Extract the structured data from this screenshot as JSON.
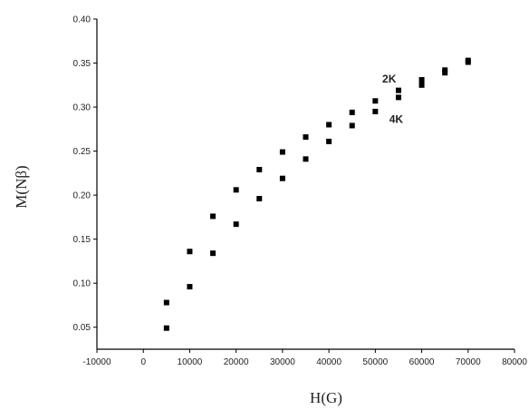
{
  "chart_data": {
    "type": "scatter",
    "title": "",
    "xlabel": "H(G)",
    "ylabel": "M(Nβ)",
    "xlim": [
      -10000,
      80000
    ],
    "ylim": [
      0.025,
      0.4
    ],
    "x_ticks": [
      -10000,
      0,
      10000,
      20000,
      30000,
      40000,
      50000,
      60000,
      70000,
      80000
    ],
    "y_ticks": [
      0.05,
      0.1,
      0.15,
      0.2,
      0.25,
      0.3,
      0.35,
      0.4
    ],
    "x_tick_labels": [
      "-10000",
      "0",
      "10000",
      "20000",
      "30000",
      "40000",
      "50000",
      "60000",
      "70000",
      "80000"
    ],
    "y_tick_labels": [
      "0.05",
      "0.10",
      "0.15",
      "0.20",
      "0.25",
      "0.30",
      "0.35",
      "0.40"
    ],
    "grid": false,
    "marker_color": "#000000",
    "series": [
      {
        "name": "2K",
        "x": [
          5000,
          10000,
          15000,
          20000,
          25000,
          30000,
          35000,
          40000,
          45000,
          50000,
          55000,
          60000,
          65000,
          70000
        ],
        "y": [
          0.078,
          0.136,
          0.176,
          0.206,
          0.229,
          0.249,
          0.266,
          0.28,
          0.294,
          0.307,
          0.319,
          0.331,
          0.342,
          0.353
        ]
      },
      {
        "name": "4K",
        "x": [
          5000,
          10000,
          15000,
          20000,
          25000,
          30000,
          35000,
          40000,
          45000,
          50000,
          55000,
          60000,
          65000,
          70000
        ],
        "y": [
          0.049,
          0.096,
          0.134,
          0.167,
          0.196,
          0.219,
          0.241,
          0.261,
          0.279,
          0.295,
          0.311,
          0.325,
          0.339,
          0.351
        ]
      }
    ],
    "annotations": [
      {
        "text": "2K",
        "x": 51500,
        "y": 0.328
      },
      {
        "text": "4K",
        "x": 53000,
        "y": 0.282
      }
    ]
  }
}
